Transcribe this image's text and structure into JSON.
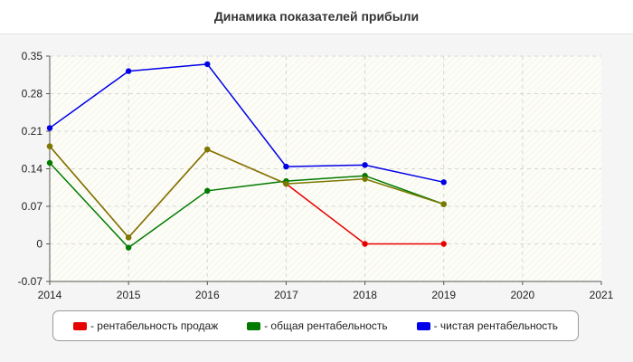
{
  "chart_data": {
    "type": "line",
    "title": "Динамика показателей прибыли",
    "xlabel": "",
    "ylabel": "",
    "x": [
      2014,
      2015,
      2016,
      2017,
      2018,
      2019
    ],
    "xlim": [
      2014,
      2021
    ],
    "ylim": [
      -0.07,
      0.35
    ],
    "x_ticks": [
      "2014",
      "2015",
      "2016",
      "2017",
      "2018",
      "2019",
      "2020",
      "2021"
    ],
    "y_ticks": [
      "0.35",
      "0.28",
      "0.21",
      "0.14",
      "0.07",
      "0",
      "-0.07"
    ],
    "grid": true,
    "legend_position": "bottom",
    "series": [
      {
        "name": "- рентабельность продаж",
        "color": "#e80000",
        "values": [
          0.182,
          0.012,
          0.176,
          0.112,
          0.0,
          0.0
        ]
      },
      {
        "name": "- общая рентабельность",
        "color": "#007a00",
        "values": [
          0.151,
          -0.007,
          0.099,
          0.117,
          0.127,
          0.074
        ]
      },
      {
        "name": "- чистая рентабельность",
        "color": "#0000e8",
        "values": [
          0.216,
          0.322,
          0.335,
          0.144,
          0.147,
          0.115
        ]
      },
      {
        "name": "",
        "color": "#7a7a00",
        "values": [
          0.182,
          0.012,
          0.176,
          0.112,
          0.121,
          0.074
        ]
      }
    ]
  }
}
